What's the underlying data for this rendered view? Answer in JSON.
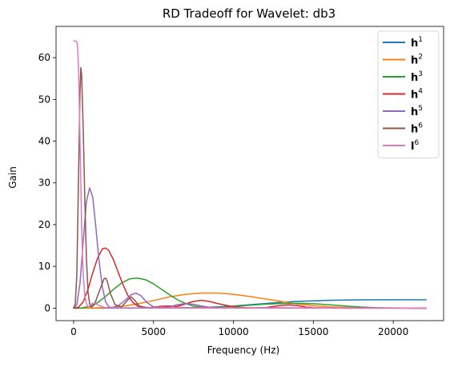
{
  "chart_data": {
    "type": "line",
    "title": "RD Tradeoff for Wavelet: db3",
    "xlabel": "Frequency (Hz)",
    "ylabel": "Gain",
    "xlim": [
      -1100,
      23150
    ],
    "ylim": [
      -3.0,
      67.5
    ],
    "xticks": [
      0,
      5000,
      10000,
      15000,
      20000
    ],
    "xtick_labels": [
      "0",
      "5000",
      "10000",
      "15000",
      "20000"
    ],
    "yticks": [
      0,
      10,
      20,
      30,
      40,
      50,
      60
    ],
    "ytick_labels": [
      "0",
      "10",
      "20",
      "30",
      "40",
      "50",
      "60"
    ],
    "grid": false,
    "legend_position": "top-right",
    "series": [
      {
        "name": "h",
        "superscript": "1",
        "bold": true,
        "color": "#1f77b4",
        "x": [
          0,
          2000,
          4000,
          6000,
          8000,
          9000,
          10000,
          11000,
          12000,
          13000,
          14000,
          15000,
          16000,
          17000,
          18000,
          20000,
          22050
        ],
        "y": [
          0,
          0,
          0.01,
          0.05,
          0.15,
          0.3,
          0.5,
          0.8,
          1.1,
          1.4,
          1.6,
          1.75,
          1.85,
          1.93,
          1.97,
          2.0,
          2.0
        ]
      },
      {
        "name": "h",
        "superscript": "2",
        "bold": true,
        "color": "#ff7f0e",
        "x": [
          0,
          1000,
          2000,
          3000,
          4000,
          5000,
          6000,
          7000,
          8000,
          9000,
          10000,
          11000,
          12000,
          13000,
          14000,
          15000,
          16000,
          17000,
          18000,
          19000,
          20000,
          22050
        ],
        "y": [
          0,
          0.01,
          0.1,
          0.4,
          1.0,
          1.8,
          2.7,
          3.3,
          3.6,
          3.6,
          3.3,
          2.8,
          2.2,
          1.6,
          1.0,
          0.6,
          0.3,
          0.15,
          0.05,
          0.02,
          0.01,
          0
        ]
      },
      {
        "name": "h",
        "superscript": "3",
        "bold": true,
        "color": "#2ca02c",
        "x": [
          0,
          500,
          1000,
          1500,
          2000,
          2500,
          3000,
          3500,
          4000,
          4500,
          5000,
          5500,
          6000,
          6500,
          7000,
          7500,
          8000,
          8500,
          9000,
          10000,
          11000,
          12000,
          13000,
          14000,
          15000,
          16000,
          17000,
          18000,
          19000,
          20000,
          22050
        ],
        "y": [
          0,
          0.05,
          0.4,
          1.3,
          2.8,
          4.5,
          6.0,
          7.0,
          7.2,
          6.8,
          5.8,
          4.5,
          3.2,
          2.0,
          1.1,
          0.5,
          0.2,
          0.1,
          0.15,
          0.4,
          0.7,
          0.95,
          1.1,
          1.15,
          1.05,
          0.8,
          0.5,
          0.25,
          0.1,
          0.03,
          0
        ]
      },
      {
        "name": "h",
        "superscript": "4",
        "bold": true,
        "color": "#d62728",
        "x": [
          0,
          300,
          600,
          900,
          1200,
          1500,
          1800,
          2000,
          2200,
          2500,
          2800,
          3100,
          3400,
          3700,
          4000,
          4300,
          4600,
          5000,
          5500,
          6000,
          6500,
          7000,
          7500,
          8000,
          8500,
          9000,
          10000,
          11000,
          12000,
          12500,
          13000,
          13500,
          14000,
          14500,
          15000,
          16000,
          17000,
          22050
        ],
        "y": [
          0,
          0.2,
          1.5,
          4.5,
          8.5,
          12.0,
          14.2,
          14.4,
          13.8,
          11.5,
          8.5,
          5.5,
          3.0,
          1.4,
          0.5,
          0.2,
          0.1,
          0.2,
          0.45,
          0.5,
          0.4,
          1.0,
          1.6,
          1.85,
          1.6,
          1.1,
          0.3,
          0.05,
          0.1,
          0.4,
          0.65,
          0.75,
          0.6,
          0.3,
          0.1,
          0.02,
          0,
          0
        ]
      },
      {
        "name": "h",
        "superscript": "5",
        "bold": true,
        "color": "#9467bd",
        "x": [
          0,
          200,
          400,
          600,
          800,
          1000,
          1200,
          1400,
          1600,
          1800,
          2000,
          2200,
          2400,
          2800,
          3200,
          3600,
          3900,
          4200,
          4600,
          5000,
          5500,
          6000,
          6500,
          7000,
          7500,
          8000,
          8500,
          9000,
          10000,
          12000,
          14000,
          22050
        ],
        "y": [
          0,
          0.8,
          6.0,
          16.0,
          25.5,
          28.8,
          26.5,
          19.0,
          11.0,
          5.0,
          1.5,
          0.3,
          0.1,
          0.6,
          1.8,
          3.2,
          3.6,
          3.0,
          1.3,
          0.3,
          0.1,
          0.3,
          0.8,
          1.1,
          0.9,
          0.5,
          0.2,
          0.1,
          0.05,
          0.1,
          0.05,
          0
        ]
      },
      {
        "name": "h",
        "superscript": "6",
        "bold": true,
        "color": "#8c564b",
        "x": [
          0,
          100,
          200,
          300,
          400,
          450,
          500,
          600,
          700,
          800,
          900,
          1000,
          1100,
          1300,
          1600,
          1900,
          2000,
          2100,
          2300,
          2600,
          3000,
          3400,
          3600,
          3800,
          4100,
          4500,
          5000,
          22050
        ],
        "y": [
          0,
          1.0,
          8.0,
          30.0,
          52.0,
          57.6,
          56.0,
          43.0,
          26.0,
          12.0,
          4.0,
          1.0,
          0.2,
          0.8,
          4.0,
          7.0,
          7.2,
          6.5,
          3.5,
          0.8,
          0.3,
          2.0,
          2.7,
          2.0,
          0.5,
          0.2,
          0.05,
          0
        ]
      },
      {
        "name": "l",
        "superscript": "6",
        "bold": true,
        "color": "#e377c2",
        "x": [
          0,
          100,
          200,
          250,
          300,
          350,
          400,
          450,
          500,
          550,
          600,
          700,
          800,
          900,
          1000,
          1100,
          1300,
          1600,
          2000,
          22050
        ],
        "y": [
          64.0,
          64.0,
          63.8,
          62.5,
          58.0,
          50.0,
          40.0,
          30.0,
          20.0,
          13.0,
          8.0,
          3.0,
          1.0,
          0.3,
          0.5,
          1.0,
          1.2,
          0.6,
          0.1,
          0
        ]
      }
    ]
  }
}
